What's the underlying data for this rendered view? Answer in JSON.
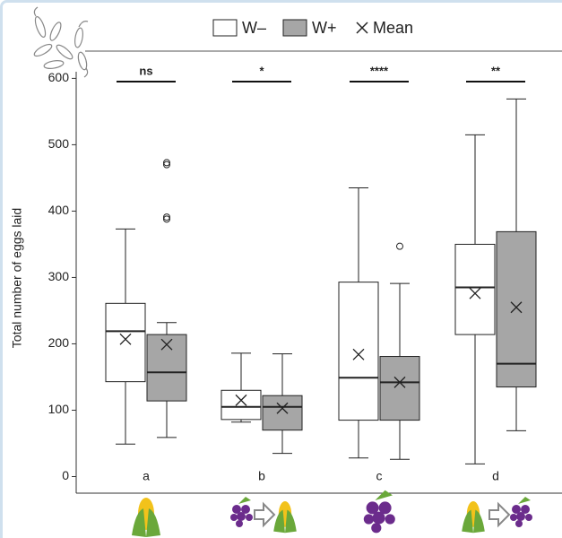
{
  "chart_data": {
    "type": "box",
    "y_label": "Total number of eggs laid",
    "categories": [
      "a",
      "b",
      "c",
      "d"
    ],
    "annotations": [
      "ns",
      "*",
      "****",
      "**"
    ],
    "mean_label": "Mean",
    "ylim": [
      -25,
      610
    ],
    "yticks": [
      0,
      100,
      200,
      300,
      400,
      500,
      600
    ],
    "series": [
      {
        "name": "W–",
        "color": "#ffffff",
        "boxes": [
          {
            "whislo": 49,
            "q1": 143,
            "med": 219,
            "q3": 261,
            "whishi": 373,
            "mean": 207,
            "fliers": []
          },
          {
            "whislo": 82,
            "q1": 86,
            "med": 105,
            "q3": 130,
            "whishi": 186,
            "mean": 115,
            "fliers": []
          },
          {
            "whislo": 28,
            "q1": 85,
            "med": 149,
            "q3": 293,
            "whishi": 435,
            "mean": 184,
            "fliers": []
          },
          {
            "whislo": 19,
            "q1": 214,
            "med": 285,
            "q3": 350,
            "whishi": 515,
            "mean": 276,
            "fliers": []
          }
        ]
      },
      {
        "name": "W+",
        "color": "#a6a6a6",
        "boxes": [
          {
            "whislo": 59,
            "q1": 114,
            "med": 157,
            "q3": 214,
            "whishi": 232,
            "mean": 199,
            "fliers": [
              473,
              470,
              391,
              388
            ]
          },
          {
            "whislo": 35,
            "q1": 70,
            "med": 105,
            "q3": 122,
            "whishi": 185,
            "mean": 103,
            "fliers": []
          },
          {
            "whislo": 26,
            "q1": 85,
            "med": 142,
            "q3": 181,
            "whishi": 291,
            "mean": 142,
            "fliers": [
              347
            ]
          },
          {
            "whislo": 69,
            "q1": 135,
            "med": 170,
            "q3": 369,
            "whishi": 569,
            "mean": 255,
            "fliers": []
          }
        ]
      }
    ]
  }
}
